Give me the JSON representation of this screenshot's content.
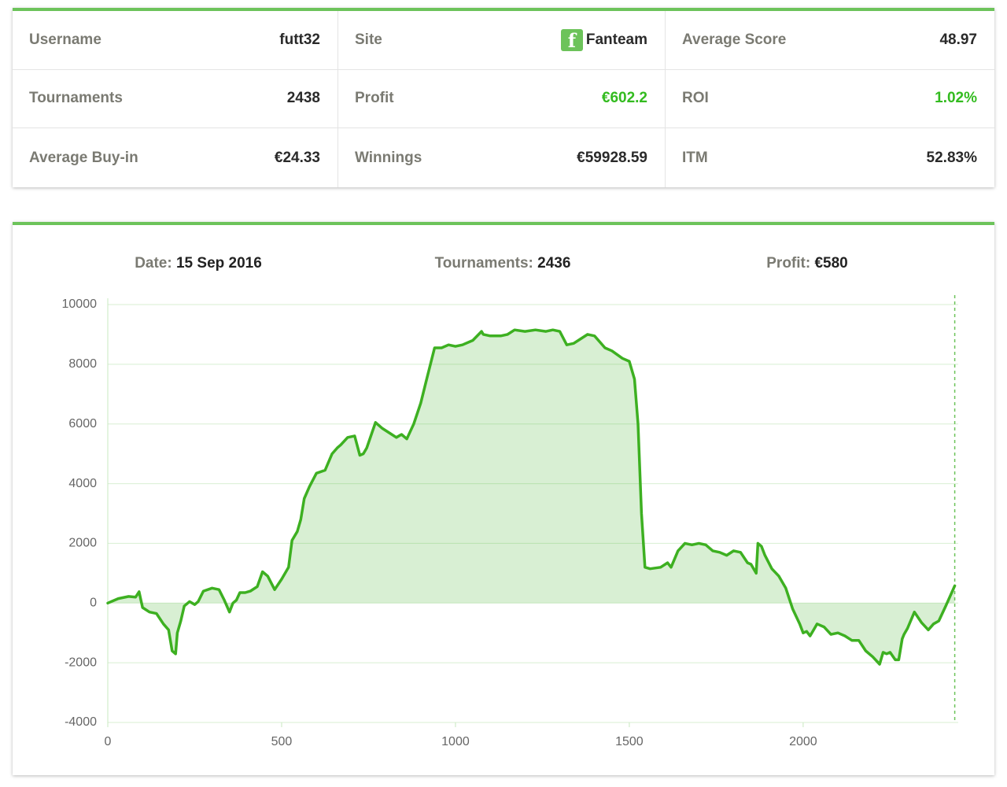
{
  "stats": {
    "rows": [
      [
        {
          "label": "Username",
          "value": "futt32"
        },
        {
          "label": "Site",
          "value": "Fanteam",
          "icon": "f"
        },
        {
          "label": "Average Score",
          "value": 48.97
        }
      ],
      [
        {
          "label": "Tournaments",
          "value": 2438
        },
        {
          "label": "Profit",
          "value": "€602.2",
          "color": "#33bb1f"
        },
        {
          "label": "ROI",
          "value": "1.02%",
          "color": "#33bb1f"
        }
      ],
      [
        {
          "label": "Average Buy-in",
          "value": "€24.33"
        },
        {
          "label": "Winnings",
          "value": "€59928.59"
        },
        {
          "label": "ITM",
          "value": "52.83%"
        }
      ]
    ]
  },
  "chart_data": {
    "type": "line",
    "tooltip": {
      "date_label": "Date:",
      "date": "15 Sep 2016",
      "tournaments_label": "Tournaments:",
      "tournaments": 2436,
      "profit_label": "Profit:",
      "profit": "€580"
    },
    "x": [
      0,
      30,
      60,
      80,
      90,
      100,
      120,
      140,
      160,
      175,
      185,
      195,
      200,
      210,
      220,
      235,
      250,
      260,
      275,
      300,
      320,
      335,
      350,
      360,
      370,
      380,
      395,
      410,
      430,
      445,
      460,
      480,
      500,
      520,
      530,
      545,
      555,
      565,
      580,
      600,
      625,
      645,
      660,
      670,
      690,
      710,
      725,
      735,
      745,
      770,
      790,
      810,
      830,
      845,
      860,
      880,
      900,
      915,
      940,
      950,
      960,
      980,
      1000,
      1020,
      1050,
      1075,
      1080,
      1100,
      1130,
      1150,
      1170,
      1200,
      1230,
      1260,
      1280,
      1300,
      1320,
      1340,
      1360,
      1380,
      1400,
      1430,
      1450,
      1480,
      1500,
      1515,
      1525,
      1535,
      1545,
      1560,
      1590,
      1610,
      1620,
      1640,
      1660,
      1680,
      1700,
      1720,
      1740,
      1760,
      1780,
      1800,
      1820,
      1840,
      1850,
      1865,
      1870,
      1880,
      1890,
      1910,
      1930,
      1950,
      1970,
      1990,
      2000,
      2010,
      2020,
      2030,
      2040,
      2060,
      2080,
      2100,
      2120,
      2140,
      2160,
      2180,
      2200,
      2220,
      2230,
      2240,
      2250,
      2265,
      2275,
      2285,
      2290,
      2300,
      2320,
      2340,
      2360,
      2375,
      2390,
      2410,
      2436
    ],
    "series": [
      {
        "color": "#3db021",
        "values": [
          0,
          150,
          220,
          200,
          380,
          -150,
          -300,
          -350,
          -700,
          -900,
          -1600,
          -1700,
          -1000,
          -600,
          -100,
          50,
          -50,
          50,
          400,
          500,
          450,
          100,
          -300,
          0,
          100,
          350,
          350,
          400,
          550,
          1050,
          900,
          450,
          800,
          1200,
          2100,
          2400,
          2800,
          3500,
          3900,
          4350,
          4450,
          5000,
          5200,
          5300,
          5550,
          5600,
          4950,
          5000,
          5200,
          6050,
          5850,
          5700,
          5550,
          5650,
          5500,
          6000,
          6700,
          7400,
          8550,
          8550,
          8550,
          8650,
          8600,
          8650,
          8800,
          9100,
          9000,
          8950,
          8950,
          9000,
          9150,
          9100,
          9150,
          9100,
          9150,
          9100,
          8650,
          8700,
          8850,
          9000,
          8950,
          8550,
          8450,
          8200,
          8100,
          7500,
          6000,
          3000,
          1200,
          1150,
          1200,
          1350,
          1200,
          1750,
          2000,
          1950,
          2000,
          1950,
          1750,
          1700,
          1600,
          1750,
          1700,
          1350,
          1300,
          1000,
          2000,
          1900,
          1600,
          1150,
          900,
          500,
          -200,
          -700,
          -1000,
          -950,
          -1100,
          -900,
          -700,
          -800,
          -1050,
          -1000,
          -1100,
          -1250,
          -1250,
          -1600,
          -1800,
          -2050,
          -1650,
          -1700,
          -1650,
          -1900,
          -1900,
          -1200,
          -1050,
          -850,
          -300,
          -650,
          -900,
          -700,
          -600,
          -100,
          580
        ]
      }
    ],
    "xlim": [
      0,
      2446
    ],
    "xticks": [
      0,
      500,
      1000,
      1500,
      2000
    ],
    "ylim": [
      -4000,
      10000
    ],
    "yticks": [
      -4000,
      -2000,
      0,
      2000,
      4000,
      6000,
      8000,
      10000
    ],
    "grid": true,
    "fill": true
  }
}
